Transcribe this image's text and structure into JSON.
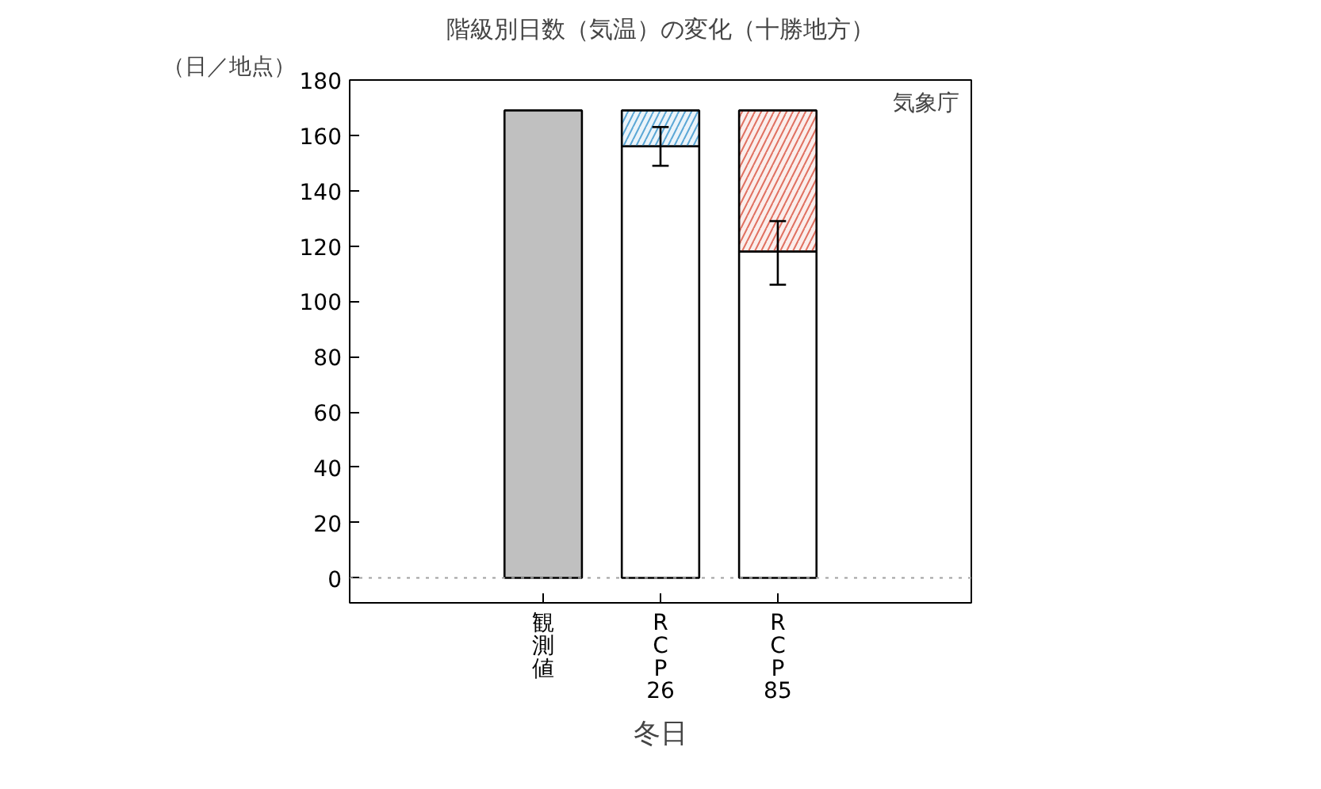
{
  "chart_data": {
    "type": "bar",
    "title": "階級別日数（気温）の変化（十勝地方）",
    "ylabel": "（日／地点）",
    "xlabel": "冬日",
    "categories": [
      "観測値",
      "RCP26",
      "RCP85"
    ],
    "stacked": true,
    "series": [
      {
        "colors": [
          "#c0c0c0",
          "#ffffff",
          "#ffffff"
        ],
        "values": [
          169,
          156,
          118
        ],
        "errors": [
          null,
          [
            149,
            163
          ],
          [
            106,
            129
          ]
        ]
      },
      {
        "colors": [
          null,
          "#5aa7d6",
          "#e07060"
        ],
        "values": [
          null,
          13,
          51
        ]
      }
    ],
    "ylim": [
      -9,
      180
    ],
    "yticks": [
      0,
      20,
      40,
      60,
      80,
      100,
      120,
      140,
      160,
      180
    ],
    "ref_lines": [
      {
        "axis": "y",
        "value": 0,
        "color": "#a0a0a0",
        "line_style": "dotted"
      }
    ],
    "annotations": [
      "気象庁"
    ],
    "grid": false
  }
}
